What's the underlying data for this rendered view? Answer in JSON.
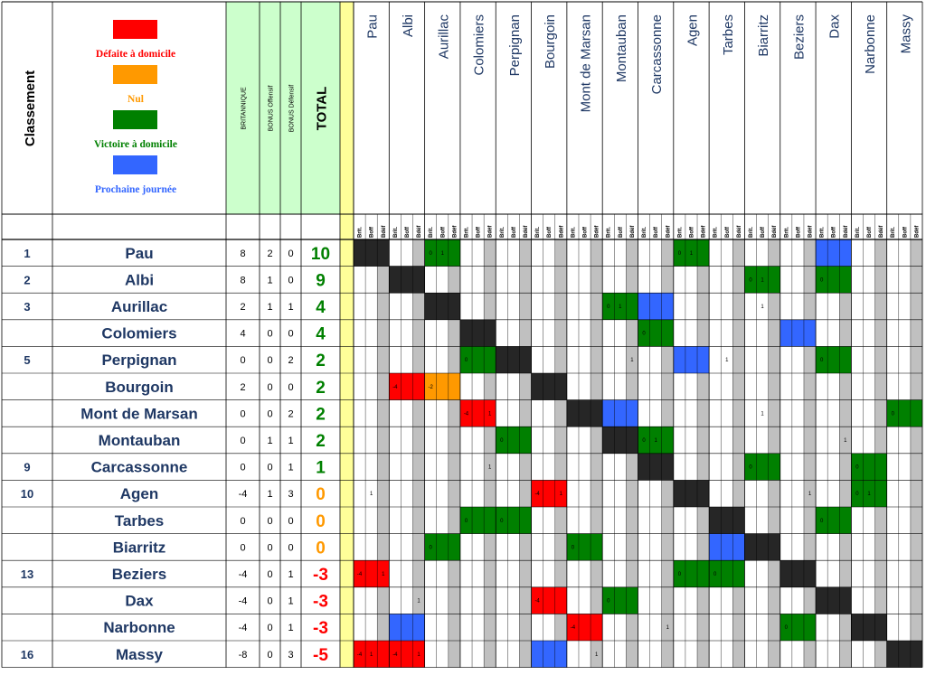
{
  "header": {
    "classement": "Classement",
    "legend": [
      {
        "label": "Défaite à domicile",
        "color": "#ff0000"
      },
      {
        "label": "Nul",
        "color": "#ff9900"
      },
      {
        "label": "Victoire à domicile",
        "color": "#008000"
      },
      {
        "label": "Prochaine journée",
        "color": "#3366ff"
      }
    ],
    "bonus_cols": [
      "BRITANNIQUE",
      "BONUS Offensif",
      "BONUS Défensif"
    ],
    "total": "TOTAL",
    "sub_cols": [
      "Brit.",
      "Boff",
      "Bdéf"
    ]
  },
  "colors": {
    "header_green": "#ccffcc",
    "yellow_sep": "#ffff99",
    "team_blue": "#1f3864",
    "grey_col": "#c0c0c0",
    "diag_dark": "#262626",
    "win": "#008000",
    "loss": "#ff0000",
    "draw": "#ff9900",
    "next": "#3366ff",
    "total_positive": "#008000",
    "total_zero": "#ff9900",
    "total_negative": "#ff0000"
  },
  "teams": [
    {
      "rank": "1",
      "name": "Pau",
      "brit": "8",
      "boff": "2",
      "bdef": "0",
      "total": "10"
    },
    {
      "rank": "2",
      "name": "Albi",
      "brit": "8",
      "boff": "1",
      "bdef": "0",
      "total": "9"
    },
    {
      "rank": "3",
      "name": "Aurillac",
      "brit": "2",
      "boff": "1",
      "bdef": "1",
      "total": "4"
    },
    {
      "rank": "",
      "name": "Colomiers",
      "brit": "4",
      "boff": "0",
      "bdef": "0",
      "total": "4"
    },
    {
      "rank": "5",
      "name": "Perpignan",
      "brit": "0",
      "boff": "0",
      "bdef": "2",
      "total": "2"
    },
    {
      "rank": "",
      "name": "Bourgoin",
      "brit": "2",
      "boff": "0",
      "bdef": "0",
      "total": "2"
    },
    {
      "rank": "",
      "name": "Mont de Marsan",
      "brit": "0",
      "boff": "0",
      "bdef": "2",
      "total": "2"
    },
    {
      "rank": "",
      "name": "Montauban",
      "brit": "0",
      "boff": "1",
      "bdef": "1",
      "total": "2"
    },
    {
      "rank": "9",
      "name": "Carcassonne",
      "brit": "0",
      "boff": "0",
      "bdef": "1",
      "total": "1"
    },
    {
      "rank": "10",
      "name": "Agen",
      "brit": "-4",
      "boff": "1",
      "bdef": "3",
      "total": "0"
    },
    {
      "rank": "",
      "name": "Tarbes",
      "brit": "0",
      "boff": "0",
      "bdef": "0",
      "total": "0"
    },
    {
      "rank": "",
      "name": "Biarritz",
      "brit": "0",
      "boff": "0",
      "bdef": "0",
      "total": "0"
    },
    {
      "rank": "13",
      "name": "Beziers",
      "brit": "-4",
      "boff": "0",
      "bdef": "1",
      "total": "-3"
    },
    {
      "rank": "",
      "name": "Dax",
      "brit": "-4",
      "boff": "0",
      "bdef": "1",
      "total": "-3"
    },
    {
      "rank": "",
      "name": "Narbonne",
      "brit": "-4",
      "boff": "0",
      "bdef": "1",
      "total": "-3"
    },
    {
      "rank": "16",
      "name": "Massy",
      "brit": "-8",
      "boff": "0",
      "bdef": "3",
      "total": "-5"
    }
  ],
  "matrix_cells": [
    {
      "row": 0,
      "col": 2,
      "type": "win",
      "vals": [
        "0",
        "1",
        ""
      ]
    },
    {
      "row": 0,
      "col": 9,
      "type": "win",
      "vals": [
        "0",
        "1",
        ""
      ]
    },
    {
      "row": 0,
      "col": 13,
      "type": "next",
      "vals": [
        "",
        "",
        ""
      ]
    },
    {
      "row": 1,
      "col": 11,
      "type": "win",
      "vals": [
        "0",
        "1",
        ""
      ]
    },
    {
      "row": 1,
      "col": 13,
      "type": "win",
      "vals": [
        "0",
        "",
        ""
      ]
    },
    {
      "row": 2,
      "col": 7,
      "type": "win",
      "vals": [
        "0",
        "1",
        ""
      ]
    },
    {
      "row": 2,
      "col": 8,
      "type": "next",
      "vals": [
        "",
        "",
        ""
      ]
    },
    {
      "row": 2,
      "col": 11,
      "type": "none",
      "vals": [
        "",
        "1",
        ""
      ]
    },
    {
      "row": 3,
      "col": 8,
      "type": "win",
      "vals": [
        "0",
        "",
        ""
      ]
    },
    {
      "row": 3,
      "col": 12,
      "type": "next",
      "vals": [
        "",
        "",
        ""
      ]
    },
    {
      "row": 4,
      "col": 3,
      "type": "win",
      "vals": [
        "0",
        "",
        ""
      ]
    },
    {
      "row": 4,
      "col": 7,
      "type": "none",
      "vals": [
        "",
        "",
        "1"
      ]
    },
    {
      "row": 4,
      "col": 9,
      "type": "next",
      "vals": [
        "",
        "",
        ""
      ]
    },
    {
      "row": 4,
      "col": 10,
      "type": "none",
      "vals": [
        "",
        "1",
        ""
      ]
    },
    {
      "row": 4,
      "col": 13,
      "type": "win",
      "vals": [
        "0",
        "",
        ""
      ]
    },
    {
      "row": 5,
      "col": 1,
      "type": "loss",
      "vals": [
        "-4",
        "",
        ""
      ]
    },
    {
      "row": 5,
      "col": 2,
      "type": "draw",
      "vals": [
        "-2",
        "",
        ""
      ]
    },
    {
      "row": 6,
      "col": 3,
      "type": "loss",
      "vals": [
        "-4",
        "",
        "1"
      ]
    },
    {
      "row": 6,
      "col": 7,
      "type": "next",
      "vals": [
        "",
        "",
        ""
      ]
    },
    {
      "row": 6,
      "col": 11,
      "type": "none",
      "vals": [
        "",
        "1",
        ""
      ]
    },
    {
      "row": 6,
      "col": 15,
      "type": "win",
      "vals": [
        "0",
        "",
        ""
      ]
    },
    {
      "row": 7,
      "col": 4,
      "type": "win",
      "vals": [
        "0",
        "",
        ""
      ]
    },
    {
      "row": 7,
      "col": 8,
      "type": "win",
      "vals": [
        "0",
        "1",
        ""
      ]
    },
    {
      "row": 7,
      "col": 13,
      "type": "none",
      "vals": [
        "",
        "",
        "1"
      ]
    },
    {
      "row": 8,
      "col": 3,
      "type": "none",
      "vals": [
        "",
        "",
        "1"
      ]
    },
    {
      "row": 8,
      "col": 11,
      "type": "win",
      "vals": [
        "0",
        "",
        ""
      ]
    },
    {
      "row": 8,
      "col": 14,
      "type": "win",
      "vals": [
        "0",
        "",
        ""
      ]
    },
    {
      "row": 9,
      "col": 0,
      "type": "none",
      "vals": [
        "",
        "1",
        ""
      ]
    },
    {
      "row": 9,
      "col": 5,
      "type": "loss",
      "vals": [
        "-4",
        "",
        "1"
      ]
    },
    {
      "row": 9,
      "col": 12,
      "type": "none",
      "vals": [
        "",
        "",
        "1"
      ]
    },
    {
      "row": 9,
      "col": 14,
      "type": "win",
      "vals": [
        "0",
        "1",
        ""
      ]
    },
    {
      "row": 10,
      "col": 3,
      "type": "win",
      "vals": [
        "0",
        "",
        ""
      ]
    },
    {
      "row": 10,
      "col": 4,
      "type": "win",
      "vals": [
        "0",
        "",
        ""
      ]
    },
    {
      "row": 10,
      "col": 13,
      "type": "win",
      "vals": [
        "0",
        "",
        ""
      ]
    },
    {
      "row": 11,
      "col": 2,
      "type": "win",
      "vals": [
        "0",
        "",
        ""
      ]
    },
    {
      "row": 11,
      "col": 6,
      "type": "win",
      "vals": [
        "0",
        "",
        ""
      ]
    },
    {
      "row": 11,
      "col": 10,
      "type": "next",
      "vals": [
        "",
        "",
        ""
      ]
    },
    {
      "row": 12,
      "col": 0,
      "type": "loss",
      "vals": [
        "-4",
        "",
        "1"
      ]
    },
    {
      "row": 12,
      "col": 9,
      "type": "win",
      "vals": [
        "0",
        "",
        ""
      ]
    },
    {
      "row": 12,
      "col": 10,
      "type": "win",
      "vals": [
        "0",
        "",
        ""
      ]
    },
    {
      "row": 13,
      "col": 1,
      "type": "none",
      "vals": [
        "",
        "",
        "1"
      ]
    },
    {
      "row": 13,
      "col": 5,
      "type": "loss",
      "vals": [
        "-4",
        "",
        ""
      ]
    },
    {
      "row": 13,
      "col": 7,
      "type": "win",
      "vals": [
        "0",
        "",
        ""
      ]
    },
    {
      "row": 14,
      "col": 1,
      "type": "next",
      "vals": [
        "",
        "",
        ""
      ]
    },
    {
      "row": 14,
      "col": 6,
      "type": "loss",
      "vals": [
        "-4",
        "",
        ""
      ]
    },
    {
      "row": 14,
      "col": 8,
      "type": "none",
      "vals": [
        "",
        "",
        "1"
      ]
    },
    {
      "row": 14,
      "col": 12,
      "type": "win",
      "vals": [
        "0",
        "",
        ""
      ]
    },
    {
      "row": 15,
      "col": 0,
      "type": "loss",
      "vals": [
        "-4",
        "1",
        ""
      ]
    },
    {
      "row": 15,
      "col": 1,
      "type": "loss",
      "vals": [
        "-4",
        "",
        "1"
      ]
    },
    {
      "row": 15,
      "col": 5,
      "type": "next",
      "vals": [
        "",
        "",
        ""
      ]
    },
    {
      "row": 15,
      "col": 6,
      "type": "none",
      "vals": [
        "",
        "",
        "1"
      ]
    }
  ]
}
